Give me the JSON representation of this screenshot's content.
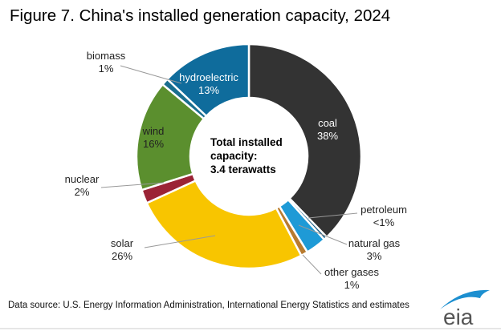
{
  "title": "Figure 7. China's installed generation capacity, 2024",
  "source": "Data source: U.S. Energy Information Administration, International Energy Statistics and estimates",
  "logo_text": "eia",
  "chart_data": {
    "type": "pie",
    "variant": "donut",
    "title": "Figure 7. China's installed generation capacity, 2024",
    "center_label": [
      "Total installed",
      "capacity:",
      "3.4 terawatts"
    ],
    "start": "12 o'clock, clockwise",
    "slices": [
      {
        "name": "coal",
        "value": 38,
        "label": "38%",
        "color": "#333333"
      },
      {
        "name": "petroleum",
        "value": 0.5,
        "label": "<1%",
        "color": "#1d5f86"
      },
      {
        "name": "natural gas",
        "value": 3,
        "label": "3%",
        "color": "#1e9ad6"
      },
      {
        "name": "other gases",
        "value": 1,
        "label": "1%",
        "color": "#b87b2f"
      },
      {
        "name": "solar",
        "value": 26,
        "label": "26%",
        "color": "#f8c500"
      },
      {
        "name": "nuclear",
        "value": 2,
        "label": "2%",
        "color": "#9b2335"
      },
      {
        "name": "wind",
        "value": 16,
        "label": "16%",
        "color": "#5b8f2e"
      },
      {
        "name": "biomass",
        "value": 1,
        "label": "1%",
        "color": "#1a6e8e"
      },
      {
        "name": "hydroelectric",
        "value": 13,
        "label": "13%",
        "color": "#0f6c9c"
      }
    ]
  }
}
